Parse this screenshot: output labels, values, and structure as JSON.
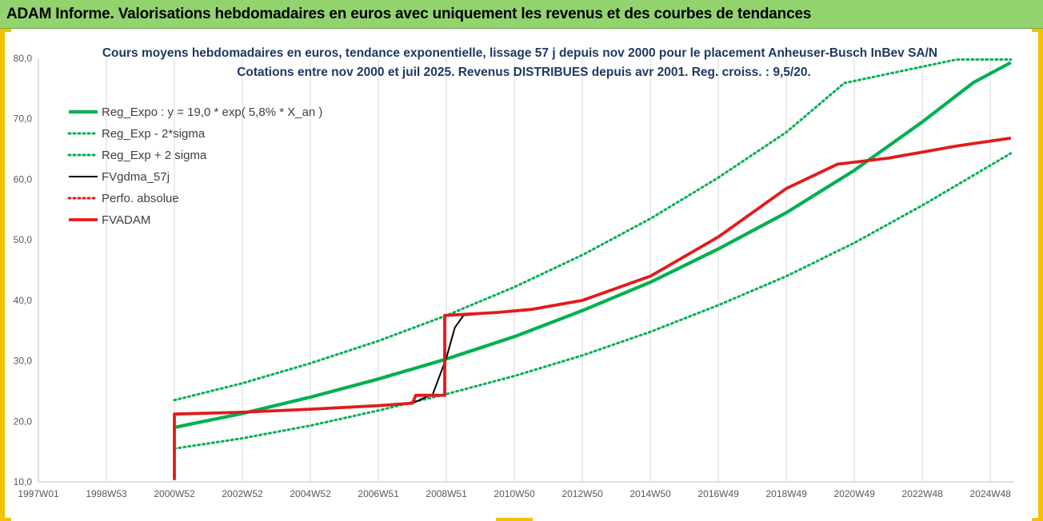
{
  "banner": {
    "title": "ADAM Informe. Valorisations hebdomadaires en euros avec uniquement les revenus et des courbes de tendances"
  },
  "colors": {
    "banner_bg": "#92d36e",
    "frame": "#f2c200",
    "green": "#00b050",
    "red": "#e31a1c",
    "black": "#000000",
    "title": "#1f3864"
  },
  "chart_data": {
    "type": "line",
    "title": "Cours moyens hebdomadaires en euros, tendance exponentielle, lissage 57 j depuis nov 2000 pour le placement Anheuser-Busch InBev SA/N",
    "subtitle": "Cotations entre nov 2000 et juil 2025. Revenus DISTRIBUES depuis avr 2001. Reg. croiss. : 9,5/20.",
    "ylim": [
      10,
      80
    ],
    "yticks": [
      "10,0",
      "20,0",
      "30,0",
      "40,0",
      "50,0",
      "60,0",
      "70,0",
      "80,0"
    ],
    "xlim": [
      1997.0,
      2025.7
    ],
    "xticks": [
      {
        "label": "1997W01",
        "x": 1997.0
      },
      {
        "label": "1998W53",
        "x": 1999.0
      },
      {
        "label": "2000W52",
        "x": 2001.0
      },
      {
        "label": "2002W52",
        "x": 2003.0
      },
      {
        "label": "2004W52",
        "x": 2005.0
      },
      {
        "label": "2006W51",
        "x": 2007.0
      },
      {
        "label": "2008W51",
        "x": 2009.0
      },
      {
        "label": "2010W50",
        "x": 2011.0
      },
      {
        "label": "2012W50",
        "x": 2013.0
      },
      {
        "label": "2014W50",
        "x": 2015.0
      },
      {
        "label": "2016W49",
        "x": 2017.0
      },
      {
        "label": "2018W49",
        "x": 2019.0
      },
      {
        "label": "2020W49",
        "x": 2021.0
      },
      {
        "label": "2022W48",
        "x": 2023.0
      },
      {
        "label": "2024W48",
        "x": 2025.0
      }
    ],
    "grid": "vertical",
    "legend_position": "top-left",
    "series": [
      {
        "name": "Reg_Expo : y = 19,0 * exp( 5,8% *  X_an )",
        "style": "solid-thick",
        "color": "#00b050",
        "points": [
          [
            2001.0,
            19.0
          ],
          [
            2003.0,
            21.3
          ],
          [
            2005.0,
            24.0
          ],
          [
            2007.0,
            27.0
          ],
          [
            2009.0,
            30.3
          ],
          [
            2011.0,
            34.0
          ],
          [
            2013.0,
            38.3
          ],
          [
            2015.0,
            43.0
          ],
          [
            2017.0,
            48.5
          ],
          [
            2019.0,
            54.5
          ],
          [
            2021.0,
            61.5
          ],
          [
            2023.0,
            69.5
          ],
          [
            2024.5,
            76.0
          ],
          [
            2025.6,
            79.3
          ]
        ]
      },
      {
        "name": "Reg_Exp - 2*sigma",
        "style": "dotted",
        "color": "#00b050",
        "points": [
          [
            2001.0,
            15.5
          ],
          [
            2003.0,
            17.2
          ],
          [
            2005.0,
            19.3
          ],
          [
            2007.0,
            21.8
          ],
          [
            2009.0,
            24.5
          ],
          [
            2011.0,
            27.5
          ],
          [
            2013.0,
            30.9
          ],
          [
            2015.0,
            34.8
          ],
          [
            2017.0,
            39.2
          ],
          [
            2019.0,
            44.0
          ],
          [
            2021.0,
            49.5
          ],
          [
            2023.0,
            55.7
          ],
          [
            2025.6,
            64.3
          ]
        ]
      },
      {
        "name": "Reg_Exp + 2 sigma",
        "style": "dotted",
        "color": "#00b050",
        "points": [
          [
            2001.0,
            23.5
          ],
          [
            2003.0,
            26.3
          ],
          [
            2005.0,
            29.6
          ],
          [
            2007.0,
            33.3
          ],
          [
            2009.0,
            37.5
          ],
          [
            2011.0,
            42.2
          ],
          [
            2013.0,
            47.5
          ],
          [
            2015.0,
            53.5
          ],
          [
            2017.0,
            60.3
          ],
          [
            2019.0,
            67.8
          ],
          [
            2020.7,
            75.9
          ],
          [
            2024.0,
            79.8
          ],
          [
            2025.6,
            79.8
          ]
        ]
      },
      {
        "name": "FVgdma_57j",
        "style": "solid",
        "color": "#000000",
        "points": [
          [
            2001.0,
            21.2
          ],
          [
            2003.0,
            21.5
          ],
          [
            2005.0,
            22.0
          ],
          [
            2007.0,
            22.6
          ],
          [
            2008.0,
            23.0
          ],
          [
            2008.6,
            24.5
          ],
          [
            2009.0,
            30.5
          ],
          [
            2009.25,
            35.5
          ],
          [
            2009.5,
            37.5
          ],
          [
            2010.5,
            38.0
          ],
          [
            2011.5,
            38.5
          ],
          [
            2013.0,
            40.0
          ],
          [
            2015.0,
            44.0
          ],
          [
            2017.0,
            50.5
          ],
          [
            2019.0,
            58.5
          ],
          [
            2020.5,
            62.5
          ],
          [
            2022.0,
            63.5
          ],
          [
            2024.0,
            65.5
          ],
          [
            2025.6,
            66.8
          ]
        ]
      },
      {
        "name": "Perfo. absolue",
        "style": "dotted",
        "color": "#e31a1c",
        "points": []
      },
      {
        "name": "FVADAM",
        "style": "solid-thick",
        "color": "#e31a1c",
        "points": [
          [
            2001.0,
            10.3
          ],
          [
            2001.0,
            21.2
          ],
          [
            2003.0,
            21.5
          ],
          [
            2005.0,
            22.0
          ],
          [
            2007.0,
            22.6
          ],
          [
            2008.0,
            23.0
          ],
          [
            2008.1,
            24.3
          ],
          [
            2008.95,
            24.3
          ],
          [
            2008.95,
            37.5
          ],
          [
            2010.5,
            38.0
          ],
          [
            2011.5,
            38.5
          ],
          [
            2013.0,
            40.0
          ],
          [
            2015.0,
            44.0
          ],
          [
            2017.0,
            50.5
          ],
          [
            2019.0,
            58.5
          ],
          [
            2020.5,
            62.5
          ],
          [
            2022.0,
            63.5
          ],
          [
            2024.0,
            65.5
          ],
          [
            2025.6,
            66.8
          ]
        ]
      }
    ]
  }
}
